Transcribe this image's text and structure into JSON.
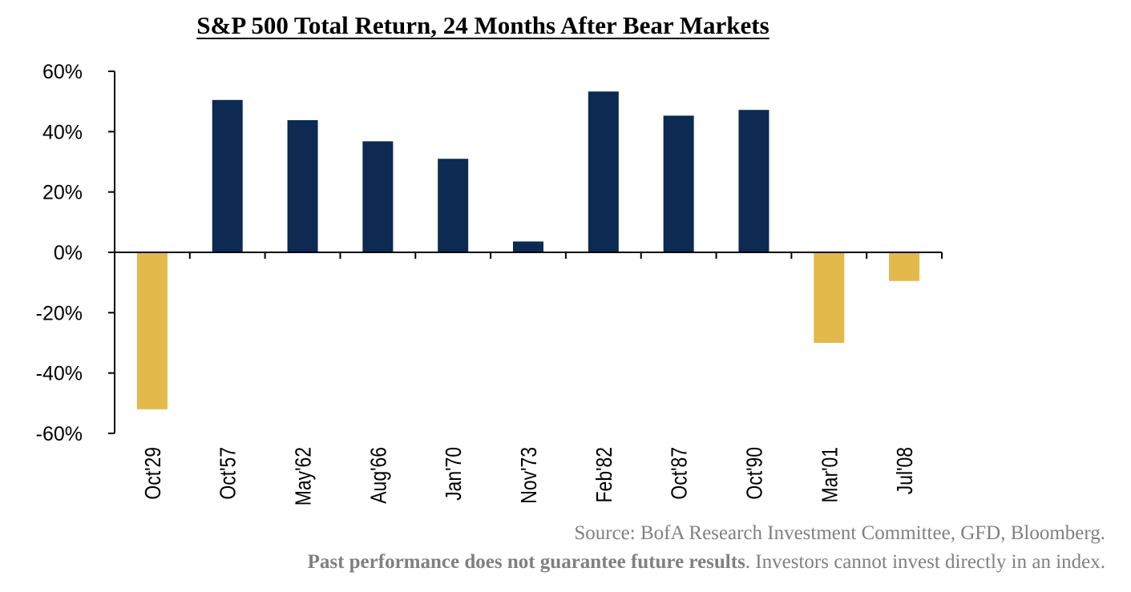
{
  "chart_data": {
    "type": "bar",
    "title": "S&P 500 Total Return, 24 Months After Bear Markets",
    "categories": [
      "Oct'29",
      "Oct'57",
      "May'62",
      "Aug'66",
      "Jan'70",
      "Nov'73",
      "Feb'82",
      "Oct'87",
      "Oct'90",
      "Mar'01",
      "Jul'08"
    ],
    "values": [
      -52,
      50.5,
      43.8,
      36.8,
      31,
      3.6,
      53.3,
      45.3,
      47.2,
      -30,
      -9.5
    ],
    "ylim": [
      -60,
      60
    ],
    "yticks": [
      "60%",
      "40%",
      "20%",
      "0%",
      "-20%",
      "-40%",
      "-60%"
    ],
    "xlabel": "",
    "ylabel": "",
    "grid": false,
    "colors": {
      "positive": "#0c2a52",
      "negative": "#e3b94c"
    }
  },
  "footer": {
    "source": "Source: BofA Research Investment Committee, GFD, Bloomberg.",
    "disclaimer_bold": "Past performance does not guarantee future results",
    "disclaimer_rest": ".  Investors cannot invest directly in an index."
  }
}
